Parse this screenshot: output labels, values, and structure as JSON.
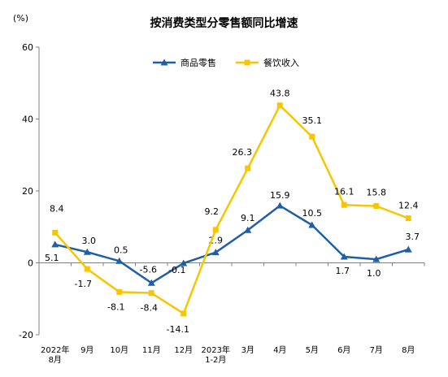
{
  "chart_data": {
    "type": "line",
    "title": "按消费类型分零售额同比增速",
    "unit_label": "(%)",
    "ylim": [
      -20,
      60
    ],
    "yticks": [
      -20,
      0,
      20,
      40,
      60
    ],
    "grid": false,
    "legend_position": "top-center",
    "categories": [
      "2022年\n8月",
      "9月",
      "10月",
      "11月",
      "12月",
      "2023年\n1-2月",
      "3月",
      "4月",
      "5月",
      "6月",
      "7月",
      "8月"
    ],
    "series": [
      {
        "name": "商品零售",
        "color": "#1f5fa8",
        "marker": "triangle",
        "values": [
          5.1,
          3.0,
          0.5,
          -5.6,
          -0.1,
          2.9,
          9.1,
          15.9,
          10.5,
          1.7,
          1.0,
          3.7
        ],
        "labels": [
          "5.1",
          "3.0",
          "0.5",
          "-5.6",
          "-0.1",
          "2.9",
          "9.1",
          "15.9",
          "10.5",
          "1.7",
          "1.0",
          "3.7"
        ]
      },
      {
        "name": "餐饮收入",
        "color": "#f7c600",
        "marker": "square",
        "values": [
          8.4,
          -1.7,
          -8.1,
          -8.4,
          -14.1,
          9.2,
          26.3,
          43.8,
          35.1,
          16.1,
          15.8,
          12.4
        ],
        "labels": [
          "8.4",
          "-1.7",
          "-8.1",
          "-8.4",
          "-14.1",
          "9.2",
          "26.3",
          "43.8",
          "35.1",
          "16.1",
          "15.8",
          "12.4"
        ]
      }
    ]
  }
}
